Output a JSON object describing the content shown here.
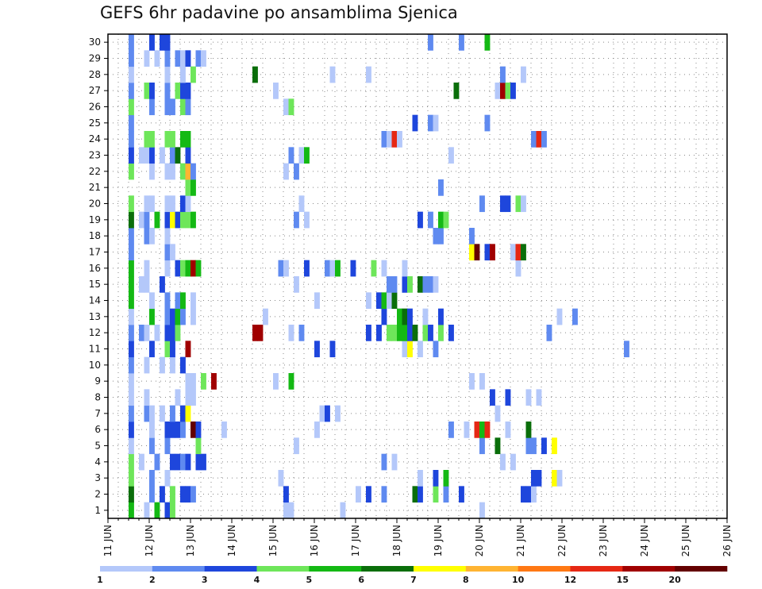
{
  "chart_data": {
    "type": "heatmap",
    "title": "GEFS 6hr padavine po ansamblima Sjenica",
    "xlabel": "",
    "ylabel": "",
    "x_ticks": [
      "11 JUN",
      "12 JUN",
      "13 JUN",
      "14 JUN",
      "15 JUN",
      "16 JUN",
      "17 JUN",
      "18 JUN",
      "19 JUN",
      "20 JUN",
      "21 JUN",
      "22 JUN",
      "23 JUN",
      "24 JUN",
      "25 JUN",
      "26 JUN"
    ],
    "x_range": [
      "11 JUN 00Z",
      "26 JUN 00Z"
    ],
    "y_members": [
      1,
      2,
      3,
      4,
      5,
      6,
      7,
      8,
      9,
      10,
      11,
      12,
      13,
      14,
      15,
      16,
      17,
      18,
      19,
      20,
      21,
      22,
      23,
      24,
      25,
      26,
      27,
      28,
      29,
      30
    ],
    "grid": true,
    "legend": {
      "placement": "bottom",
      "levels": [
        "1",
        "2",
        "3",
        "4",
        "5",
        "6",
        "7",
        "8",
        "10",
        "12",
        "15",
        "20"
      ],
      "colors": [
        "#b4c8fa",
        "#5f8af0",
        "#1e46dc",
        "#6ee65a",
        "#14b914",
        "#0a6e0a",
        "#ffff00",
        "#ffb432",
        "#ff7814",
        "#e62814",
        "#a00000",
        "#640000"
      ]
    },
    "rows": {
      "30": "....2...3.33..................................................2.....2....5",
      "29": "....2..1.1.2.213.21.......................................................",
      "28": "....1......1..1.4...........6..............1......1.........................2...1",
      "27": "....2..43..2.433................1..................................6.......1b43",
      "26": "....4...2..22.42..................14.............................................",
      "25": "....2......................................................3..21.........2.......",
      "24": "....2..44..44.55.....................................21a1.........................2a2",
      "23": "....3.113.1.26.3...................2.15...........................1..............",
      "22": "....4...1..11.482.................1.2.............................................",
      "21": "...............45...............................................2..................",
      "20": "....4..11..11.31.....................1..................................2...33.41",
      "19": "....6.12.5.373445...................2.1.....................3.2.54................",
      "18": "....2..21..1...................................................22.....2...........",
      "17": "....2......21.........................................................7c.3b...1a6",
      "16": "....5..1...1.345b5...............21...3...215..3...4.1...1.....................1",
      "15": "....5.11..3.........................1.................22.34.6221.................",
      "14": "....5...1..2.25.1.......................1.........1.3516.........................",
      "13": "....1...5..2352.1.............1......................3..563..1..3......................1..2",
      "12": "....2.21.1.334..............bb.....1.2............3.3.445536.43.4.3..................2",
      "11": "....3...3..43..b........................3..3.............17.1..2....................................2",
      "10": "....2..1..1.1.3...........................................................................",
      "9": "....1..........11.4.b...........1..5..................................1.1..........",
      "8": "....1..1.....1.11.........................................................3..3...1.1",
      "7": "....2..21.1.2.37.........................13.1..............................1......",
      "6": "....3...1..3332.c3....1.................1.........................2..1.a5a...1...6.d",
      "5": "....1...2..2.....4..................1...................................2..6.....22.3.7",
      "4": "....4.1..2..3323.33..................................2.1....................1.1",
      "3": "....4...2..1.....................1..........................1..3.5................33..71",
      "2": "....6...2.3.4.332.................3.............1.3..2.....63..4.2..3...........331",
      "1": "....5..1.5.34.....................11.........1..........................1.........."
    }
  }
}
